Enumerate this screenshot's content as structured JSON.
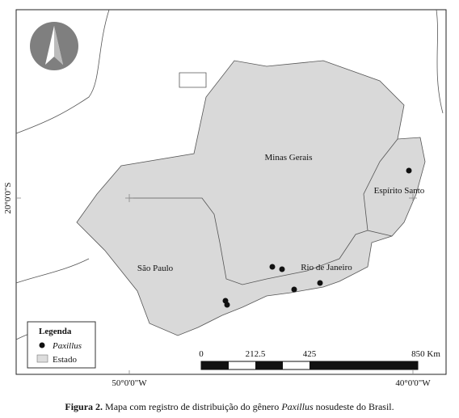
{
  "map": {
    "labels": {
      "minas": "Minas Gerais",
      "espirito": "Espírito Santo",
      "rio": "Rio de Janeiro",
      "saopaulo": "São Paulo"
    },
    "coordinates": {
      "lon_left": "50°0'0\"W",
      "lon_right": "40°0'0\"W",
      "lat": "20°0'0\"S"
    },
    "legend": {
      "title": "Legenda",
      "points": "Paxillus",
      "states": "Estado"
    },
    "scale": {
      "s0": "0",
      "s1": "212.5",
      "s2": "425",
      "s3": "850 Km"
    }
  },
  "caption": {
    "label": "Figura 2.",
    "text_before": " Mapa com registro de distribuição do gênero ",
    "genus": "Paxillus",
    "text_after": " nosudeste do Brasil."
  }
}
